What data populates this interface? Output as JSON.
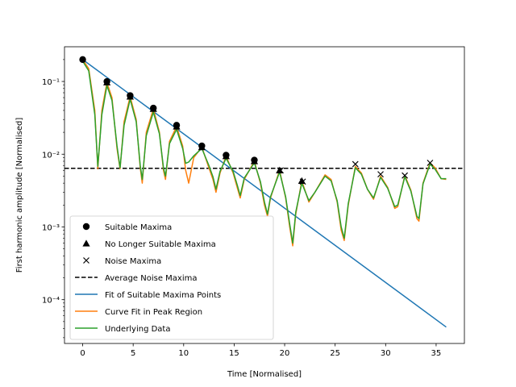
{
  "chart_data": {
    "type": "line",
    "title": "",
    "xlabel": "Time [Normalised]",
    "ylabel": "First harmonic amplitude [Normalised]",
    "yscale": "log",
    "xlim": [
      -1.8,
      37.8
    ],
    "ylim": [
      2.5e-05,
      0.3
    ],
    "x_ticks": [
      0,
      5,
      10,
      15,
      20,
      25,
      30,
      35
    ],
    "x_tick_labels": [
      "0",
      "5",
      "10",
      "15",
      "20",
      "25",
      "30",
      "35"
    ],
    "y_ticks": [
      0.0001,
      0.001,
      0.01,
      0.1
    ],
    "y_tick_labels": [
      "10⁻⁴",
      "10⁻³",
      "10⁻²",
      "10⁻¹"
    ],
    "grid": false,
    "legend_position": "lower-left",
    "series": [
      {
        "name": "Suitable Maxima",
        "kind": "marker",
        "marker": "circle",
        "color": "#000000",
        "x": [
          0,
          2.4,
          4.7,
          7.0,
          9.3,
          11.8,
          14.2,
          17.0
        ],
        "y": [
          0.2,
          0.1,
          0.064,
          0.043,
          0.025,
          0.013,
          0.0097,
          0.0083
        ]
      },
      {
        "name": "No Longer Suitable Maxima",
        "kind": "marker",
        "marker": "triangle",
        "color": "#000000",
        "x": [
          2.4,
          4.7,
          7.0,
          9.3,
          11.8,
          14.2,
          17.0,
          19.5,
          21.7
        ],
        "y": [
          0.097,
          0.062,
          0.042,
          0.024,
          0.0125,
          0.0094,
          0.008,
          0.006,
          0.0043
        ]
      },
      {
        "name": "Noise Maxima",
        "kind": "marker",
        "marker": "x",
        "color": "#000000",
        "x": [
          19.6,
          21.8,
          27.0,
          29.5,
          31.9,
          34.4
        ],
        "y": [
          0.006,
          0.0042,
          0.0073,
          0.0053,
          0.0051,
          0.0076
        ]
      },
      {
        "name": "Average Noise Maxima",
        "kind": "hline",
        "color": "#000000",
        "dash": true,
        "y": 0.0064
      },
      {
        "name": "Fit of Suitable Maxima Points",
        "kind": "line",
        "color": "#1f77b4",
        "x": [
          0,
          36
        ],
        "y": [
          0.2,
          4.2e-05
        ]
      },
      {
        "name": "Curve Fit in Peak Region",
        "kind": "line",
        "color": "#ff7f0e",
        "x": [
          0,
          0.6,
          1.2,
          1.5,
          1.9,
          2.4,
          2.9,
          3.4,
          3.7,
          4.1,
          4.7,
          5.3,
          5.7,
          5.9,
          6.3,
          7.0,
          7.6,
          8.0,
          8.2,
          8.6,
          9.3,
          9.9,
          10.2,
          10.5,
          11.0,
          11.8,
          12.5,
          12.9,
          13.2,
          13.6,
          14.2,
          14.9,
          15.3,
          15.6,
          16.0,
          17.0,
          17.6,
          18.0,
          18.3,
          18.6,
          19.5,
          20.1,
          20.5,
          20.8,
          21.1,
          21.7,
          22.4,
          23.0,
          24.0,
          24.6,
          25.2,
          25.6,
          25.9,
          26.3,
          27.0,
          27.6,
          28.2,
          28.8,
          29.5,
          30.2,
          30.9,
          31.2,
          31.9,
          32.5,
          33.1,
          33.3,
          33.7,
          34.4,
          34.9,
          35.5,
          36.0
        ],
        "y": [
          0.2,
          0.15,
          0.04,
          0.0063,
          0.04,
          0.097,
          0.06,
          0.012,
          0.0063,
          0.028,
          0.062,
          0.03,
          0.0065,
          0.004,
          0.02,
          0.042,
          0.02,
          0.006,
          0.0045,
          0.015,
          0.024,
          0.013,
          0.006,
          0.004,
          0.009,
          0.0125,
          0.0065,
          0.0045,
          0.003,
          0.0055,
          0.0094,
          0.0055,
          0.0035,
          0.0025,
          0.0045,
          0.008,
          0.004,
          0.002,
          0.0014,
          0.0025,
          0.006,
          0.0025,
          0.001,
          0.00055,
          0.0015,
          0.0043,
          0.0022,
          0.003,
          0.0052,
          0.0045,
          0.0022,
          0.0009,
          0.00065,
          0.002,
          0.0068,
          0.0055,
          0.0033,
          0.0024,
          0.005,
          0.0035,
          0.0018,
          0.0019,
          0.0051,
          0.0032,
          0.0013,
          0.0012,
          0.004,
          0.0076,
          0.0065,
          0.0046,
          0.0045
        ]
      },
      {
        "name": "Underlying Data",
        "kind": "line",
        "color": "#2ca02c",
        "x": [
          0,
          0.6,
          1.2,
          1.5,
          1.9,
          2.4,
          2.9,
          3.4,
          3.7,
          4.1,
          4.7,
          5.3,
          5.7,
          5.9,
          6.3,
          7.0,
          7.6,
          8.0,
          8.2,
          8.6,
          9.3,
          9.9,
          10.2,
          10.5,
          11.0,
          11.8,
          12.5,
          12.9,
          13.2,
          13.6,
          14.2,
          14.9,
          15.3,
          15.6,
          16.0,
          17.0,
          17.6,
          18.0,
          18.3,
          18.6,
          19.5,
          20.1,
          20.5,
          20.8,
          21.1,
          21.7,
          22.4,
          23.0,
          24.0,
          24.6,
          25.2,
          25.6,
          25.9,
          26.3,
          27.0,
          27.6,
          28.2,
          28.8,
          29.5,
          30.2,
          30.9,
          31.2,
          31.9,
          32.5,
          33.1,
          33.3,
          33.7,
          34.4,
          34.9,
          35.5,
          36.0
        ],
        "y": [
          0.19,
          0.14,
          0.035,
          0.0068,
          0.035,
          0.088,
          0.055,
          0.013,
          0.0065,
          0.025,
          0.057,
          0.028,
          0.007,
          0.0045,
          0.018,
          0.038,
          0.019,
          0.0065,
          0.005,
          0.014,
          0.022,
          0.012,
          0.0075,
          0.0078,
          0.0095,
          0.012,
          0.007,
          0.0049,
          0.0033,
          0.0058,
          0.0088,
          0.0058,
          0.0038,
          0.0027,
          0.0047,
          0.0076,
          0.0042,
          0.0022,
          0.0015,
          0.0026,
          0.0057,
          0.0026,
          0.0011,
          0.0006,
          0.0016,
          0.004,
          0.0023,
          0.003,
          0.005,
          0.0043,
          0.0023,
          0.001,
          0.0007,
          0.0021,
          0.0065,
          0.0053,
          0.0033,
          0.0025,
          0.0048,
          0.0034,
          0.0019,
          0.002,
          0.0049,
          0.0031,
          0.0014,
          0.0013,
          0.0039,
          0.0073,
          0.0062,
          0.0046,
          0.0046
        ]
      }
    ]
  }
}
